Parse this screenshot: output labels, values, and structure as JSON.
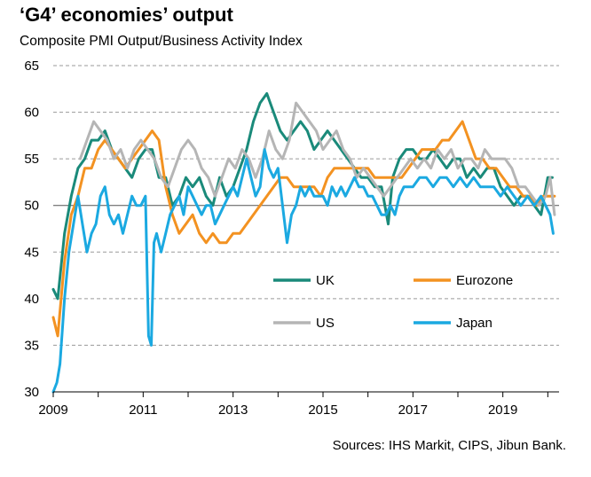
{
  "chart_data": {
    "type": "line",
    "title": "‘G4’ economies’ output",
    "subtitle": "Composite PMI Output/Business  Activity Index",
    "source": "Sources: IHS Markit, CIPS, Jibun Bank.",
    "xlim": [
      2009,
      2020.25
    ],
    "ylim": [
      30,
      65
    ],
    "x_ticks": [
      2009,
      2011,
      2013,
      2015,
      2017,
      2019
    ],
    "y_ticks": [
      30,
      35,
      40,
      45,
      50,
      55,
      60,
      65
    ],
    "grid": "horizontal-dashed",
    "reference_line": 50,
    "legend_position": "center-lower, inside plot",
    "series": [
      {
        "name": "UK",
        "color": "#1a8a7a",
        "x": [
          2009.0,
          2009.1,
          2009.25,
          2009.4,
          2009.55,
          2009.7,
          2009.85,
          2010.0,
          2010.15,
          2010.3,
          2010.45,
          2010.6,
          2010.75,
          2010.9,
          2011.05,
          2011.2,
          2011.35,
          2011.5,
          2011.65,
          2011.8,
          2011.95,
          2012.1,
          2012.25,
          2012.4,
          2012.55,
          2012.7,
          2012.85,
          2013.0,
          2013.15,
          2013.3,
          2013.45,
          2013.6,
          2013.75,
          2013.9,
          2014.05,
          2014.2,
          2014.35,
          2014.5,
          2014.65,
          2014.8,
          2014.95,
          2015.1,
          2015.25,
          2015.4,
          2015.55,
          2015.7,
          2015.85,
          2016.0,
          2016.15,
          2016.3,
          2016.45,
          2016.55,
          2016.7,
          2016.85,
          2017.0,
          2017.15,
          2017.3,
          2017.45,
          2017.6,
          2017.75,
          2017.9,
          2018.05,
          2018.2,
          2018.35,
          2018.5,
          2018.65,
          2018.8,
          2018.95,
          2019.1,
          2019.25,
          2019.4,
          2019.55,
          2019.7,
          2019.85,
          2020.0,
          2020.1
        ],
        "values": [
          41,
          40,
          47,
          51,
          54,
          55,
          57,
          57,
          58,
          56,
          55,
          54,
          53,
          55,
          56,
          56,
          53,
          53,
          50,
          51,
          53,
          52,
          53,
          51,
          50,
          53,
          51,
          52,
          54,
          56,
          59,
          61,
          62,
          60,
          58,
          57,
          58,
          59,
          58,
          56,
          57,
          58,
          57,
          56,
          55,
          54,
          53,
          53,
          52,
          52,
          48,
          53,
          55,
          56,
          56,
          55,
          55,
          56,
          55,
          54,
          55,
          55,
          53,
          54,
          53,
          54,
          54,
          52,
          51,
          50,
          51,
          51,
          50,
          49,
          53,
          53
        ]
      },
      {
        "name": "Eurozone",
        "color": "#f39221",
        "x": [
          2009.0,
          2009.1,
          2009.25,
          2009.4,
          2009.55,
          2009.7,
          2009.85,
          2010.0,
          2010.15,
          2010.3,
          2010.45,
          2010.6,
          2010.75,
          2010.9,
          2011.05,
          2011.2,
          2011.35,
          2011.5,
          2011.65,
          2011.8,
          2011.95,
          2012.1,
          2012.25,
          2012.4,
          2012.55,
          2012.7,
          2012.85,
          2013.0,
          2013.15,
          2013.3,
          2013.45,
          2013.6,
          2013.75,
          2013.9,
          2014.05,
          2014.2,
          2014.35,
          2014.5,
          2014.65,
          2014.8,
          2014.95,
          2015.1,
          2015.25,
          2015.4,
          2015.55,
          2015.7,
          2015.85,
          2016.0,
          2016.15,
          2016.3,
          2016.45,
          2016.6,
          2016.75,
          2016.9,
          2017.05,
          2017.2,
          2017.35,
          2017.5,
          2017.65,
          2017.8,
          2017.95,
          2018.1,
          2018.25,
          2018.4,
          2018.55,
          2018.7,
          2018.85,
          2019.0,
          2019.15,
          2019.3,
          2019.45,
          2019.6,
          2019.75,
          2019.9,
          2020.05,
          2020.15
        ],
        "values": [
          38,
          36,
          44,
          49,
          51,
          54,
          54,
          56,
          57,
          56,
          55,
          54,
          55,
          56,
          57,
          58,
          57,
          52,
          49,
          47,
          48,
          49,
          47,
          46,
          47,
          46,
          46,
          47,
          47,
          48,
          49,
          50,
          51,
          52,
          53,
          53,
          52,
          52,
          52,
          52,
          51,
          53,
          54,
          54,
          54,
          54,
          54,
          54,
          53,
          53,
          53,
          53,
          53,
          54,
          55,
          56,
          56,
          56,
          57,
          57,
          58,
          59,
          57,
          55,
          55,
          54,
          54,
          53,
          52,
          52,
          51,
          51,
          50,
          51,
          51,
          51
        ]
      },
      {
        "name": "US",
        "color": "#b5b5b5",
        "x": [
          2009.6,
          2009.75,
          2009.9,
          2010.05,
          2010.2,
          2010.35,
          2010.5,
          2010.65,
          2010.8,
          2010.95,
          2011.1,
          2011.25,
          2011.4,
          2011.55,
          2011.7,
          2011.85,
          2012.0,
          2012.15,
          2012.3,
          2012.45,
          2012.6,
          2012.75,
          2012.9,
          2013.05,
          2013.2,
          2013.35,
          2013.5,
          2013.65,
          2013.8,
          2013.95,
          2014.1,
          2014.25,
          2014.4,
          2014.55,
          2014.7,
          2014.85,
          2015.0,
          2015.15,
          2015.3,
          2015.45,
          2015.6,
          2015.75,
          2015.9,
          2016.05,
          2016.2,
          2016.35,
          2016.5,
          2016.65,
          2016.8,
          2016.95,
          2017.1,
          2017.25,
          2017.4,
          2017.55,
          2017.7,
          2017.85,
          2018.0,
          2018.15,
          2018.3,
          2018.45,
          2018.6,
          2018.75,
          2018.9,
          2019.05,
          2019.2,
          2019.35,
          2019.5,
          2019.65,
          2019.8,
          2019.95,
          2020.05,
          2020.15
        ],
        "values": [
          55,
          57,
          59,
          58,
          57,
          55,
          56,
          54,
          56,
          57,
          56,
          55,
          53,
          52,
          54,
          56,
          57,
          56,
          54,
          53,
          51,
          53,
          55,
          54,
          56,
          55,
          53,
          55,
          58,
          56,
          55,
          57,
          61,
          60,
          59,
          58,
          56,
          57,
          58,
          56,
          55,
          53,
          54,
          53,
          52,
          51,
          52,
          53,
          54,
          55,
          54,
          55,
          54,
          56,
          55,
          56,
          54,
          55,
          55,
          54,
          56,
          55,
          55,
          55,
          54,
          52,
          52,
          51,
          50,
          51,
          53,
          49
        ]
      },
      {
        "name": "Japan",
        "color": "#1ba9e1",
        "x": [
          2009.0,
          2009.08,
          2009.15,
          2009.25,
          2009.35,
          2009.45,
          2009.55,
          2009.65,
          2009.75,
          2009.85,
          2009.95,
          2010.05,
          2010.15,
          2010.25,
          2010.35,
          2010.45,
          2010.55,
          2010.65,
          2010.75,
          2010.85,
          2010.95,
          2011.05,
          2011.12,
          2011.18,
          2011.24,
          2011.3,
          2011.4,
          2011.5,
          2011.6,
          2011.7,
          2011.8,
          2011.9,
          2012.0,
          2012.1,
          2012.2,
          2012.3,
          2012.4,
          2012.5,
          2012.6,
          2012.7,
          2012.8,
          2012.9,
          2013.0,
          2013.1,
          2013.2,
          2013.3,
          2013.4,
          2013.5,
          2013.6,
          2013.7,
          2013.8,
          2013.9,
          2014.0,
          2014.1,
          2014.2,
          2014.3,
          2014.4,
          2014.5,
          2014.6,
          2014.7,
          2014.8,
          2014.9,
          2015.0,
          2015.1,
          2015.2,
          2015.3,
          2015.4,
          2015.5,
          2015.6,
          2015.7,
          2015.8,
          2015.9,
          2016.0,
          2016.1,
          2016.2,
          2016.3,
          2016.4,
          2016.5,
          2016.6,
          2016.7,
          2016.8,
          2016.9,
          2017.0,
          2017.15,
          2017.3,
          2017.45,
          2017.6,
          2017.75,
          2017.9,
          2018.05,
          2018.2,
          2018.35,
          2018.5,
          2018.65,
          2018.8,
          2018.95,
          2019.1,
          2019.25,
          2019.4,
          2019.55,
          2019.7,
          2019.85,
          2019.95,
          2020.05,
          2020.12
        ],
        "values": [
          30,
          31,
          33,
          40,
          45,
          48,
          51,
          48,
          45,
          47,
          48,
          51,
          52,
          49,
          48,
          49,
          47,
          49,
          51,
          50,
          50,
          51,
          36,
          35,
          46,
          47,
          45,
          47,
          49,
          50,
          51,
          49,
          52,
          51,
          50,
          49,
          50,
          50,
          48,
          49,
          50,
          51,
          52,
          51,
          53,
          55,
          53,
          51,
          52,
          56,
          54,
          53,
          54,
          50,
          46,
          49,
          50,
          52,
          51,
          52,
          51,
          51,
          51,
          50,
          52,
          51,
          52,
          51,
          52,
          53,
          52,
          52,
          51,
          51,
          50,
          49,
          49,
          50,
          49,
          51,
          52,
          52,
          52,
          53,
          53,
          52,
          53,
          53,
          52,
          53,
          52,
          53,
          52,
          52,
          52,
          51,
          52,
          51,
          50,
          51,
          50,
          51,
          50,
          49,
          47
        ]
      }
    ]
  }
}
